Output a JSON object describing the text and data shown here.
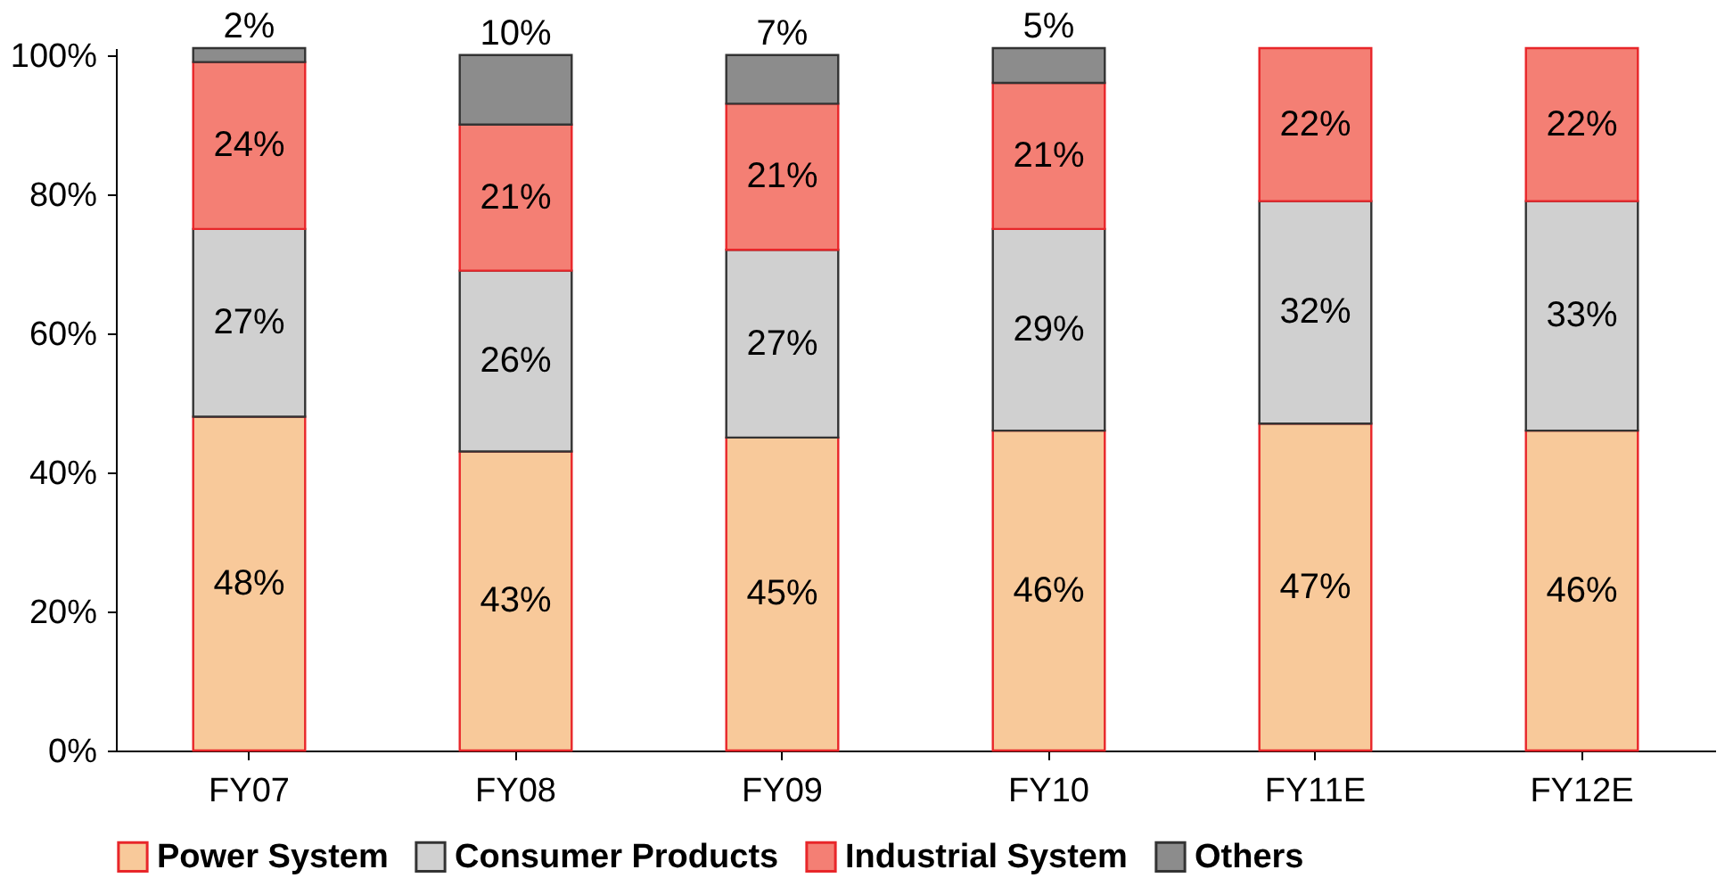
{
  "chart_data": {
    "type": "bar",
    "stacked": true,
    "categories": [
      "FY07",
      "FY08",
      "FY09",
      "FY10",
      "FY11E",
      "FY12E"
    ],
    "series": [
      {
        "name": "Power System",
        "color": "#f8c99a",
        "values": [
          48,
          43,
          45,
          46,
          47,
          46
        ],
        "value_labels": [
          "48%",
          "43%",
          "45%",
          "46%",
          "47%",
          "46%"
        ]
      },
      {
        "name": "Consumer Products",
        "color": "#d0d0d0",
        "values": [
          27,
          26,
          27,
          29,
          32,
          33
        ],
        "value_labels": [
          "27%",
          "26%",
          "27%",
          "29%",
          "32%",
          "33%"
        ]
      },
      {
        "name": "Industrial System",
        "color": "#f47f74",
        "values": [
          24,
          21,
          21,
          21,
          22,
          22
        ],
        "value_labels": [
          "24%",
          "21%",
          "21%",
          "21%",
          "22%",
          "22%"
        ]
      },
      {
        "name": "Others",
        "color": "#8c8c8c",
        "values": [
          2,
          10,
          7,
          5,
          null,
          null
        ],
        "value_labels": [
          "2%",
          "10%",
          "7%",
          "5%",
          null,
          null
        ]
      }
    ],
    "ylim": [
      0,
      101
    ],
    "yticks": [
      {
        "value": 0,
        "label": "0%"
      },
      {
        "value": 20,
        "label": "20%"
      },
      {
        "value": 40,
        "label": "40%"
      },
      {
        "value": 60,
        "label": "60%"
      },
      {
        "value": 80,
        "label": "80%"
      },
      {
        "value": 100,
        "label": "100%"
      }
    ],
    "grid": false,
    "legend": "bottom"
  }
}
